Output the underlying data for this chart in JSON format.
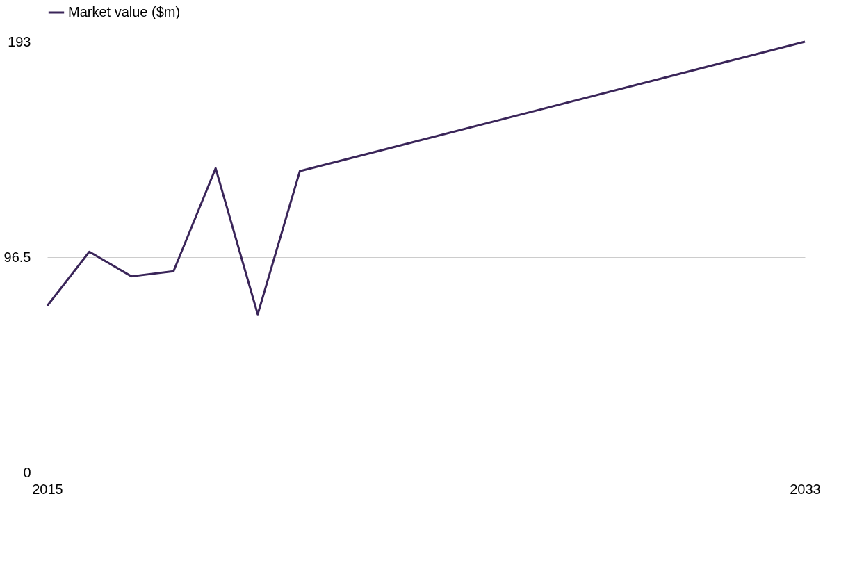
{
  "chart_data": {
    "type": "line",
    "x": [
      2015,
      2016,
      2017,
      2018,
      2019,
      2020,
      2021,
      2033
    ],
    "series": [
      {
        "name": "Market value ($m)",
        "color": "#3a2559",
        "values": [
          74.7,
          98.9,
          87.9,
          90.2,
          136.3,
          70.9,
          135.0,
          193
        ]
      }
    ],
    "xlim": [
      2015,
      2033
    ],
    "xticks": [
      2015,
      2033
    ],
    "ylim": [
      0,
      193
    ],
    "yticks": [
      0,
      96.5,
      193
    ],
    "grid": "y",
    "legend": "top left",
    "marker": "none",
    "line_style": "solid"
  }
}
